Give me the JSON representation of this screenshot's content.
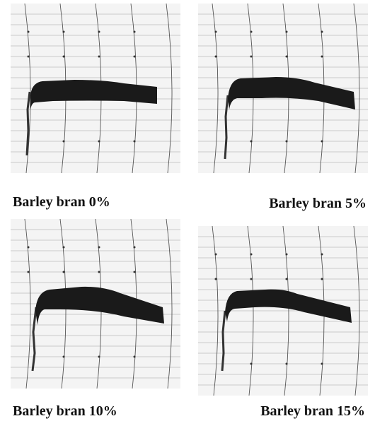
{
  "panels": [
    {
      "caption": "Barley bran 0%"
    },
    {
      "caption": "Barley bran 5%"
    },
    {
      "caption": "Barley bran 10%"
    },
    {
      "caption": "Barley bran 15%"
    }
  ]
}
